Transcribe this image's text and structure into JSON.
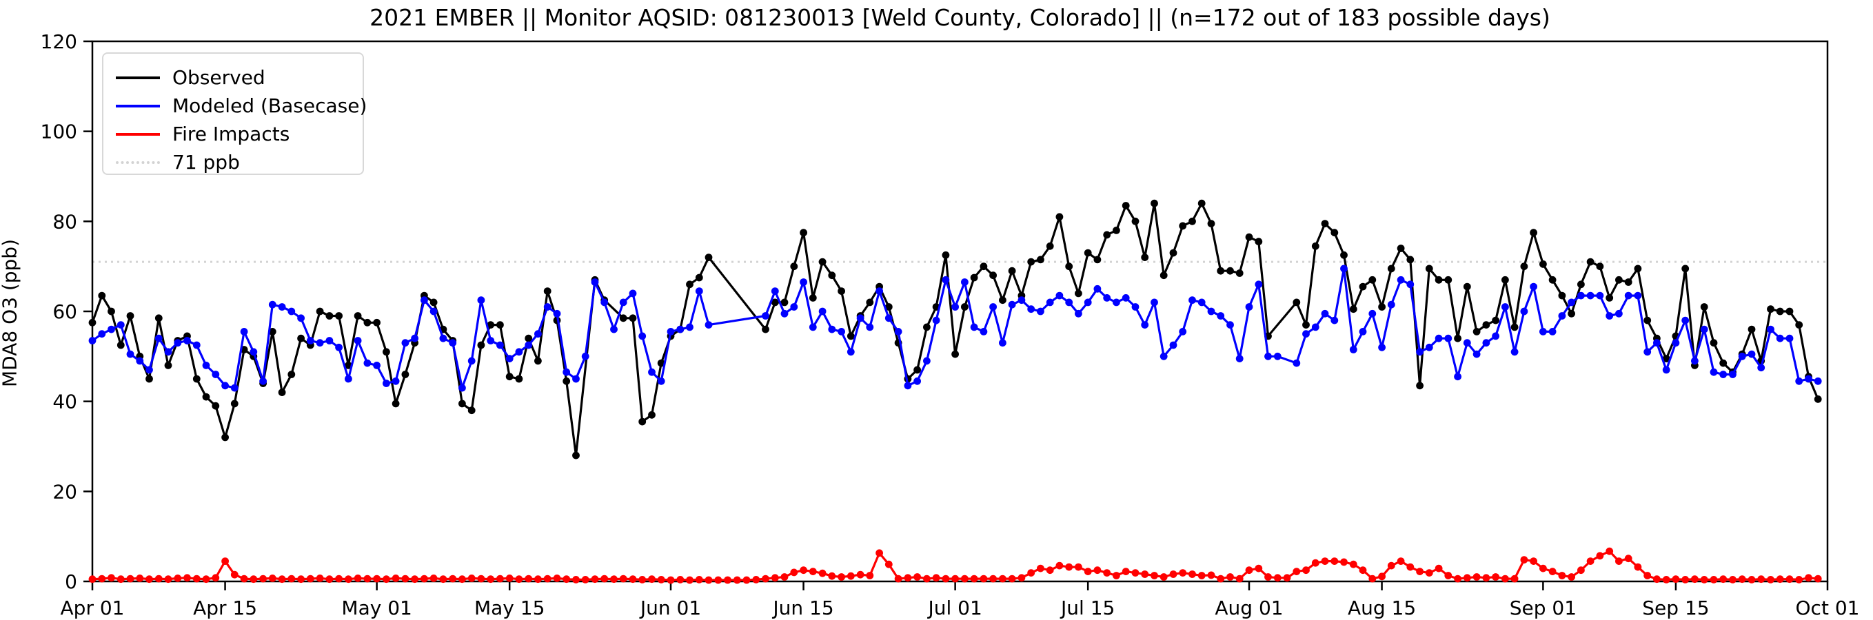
{
  "header": {
    "title": "2021 EMBER || Monitor AQSID: 081230013 [Weld County, Colorado] || (n=172 out of 183 possible days)"
  },
  "axes": {
    "ylabel": "MDA8 O3 (ppb)",
    "y_ticks": [
      0,
      20,
      40,
      60,
      80,
      100,
      120
    ],
    "ylim": [
      0,
      120
    ]
  },
  "legend": {
    "items": [
      {
        "label": "Observed",
        "color": "#000000",
        "style": "solid"
      },
      {
        "label": "Modeled (Basecase)",
        "color": "#0000ff",
        "style": "solid"
      },
      {
        "label": "Fire Impacts",
        "color": "#ff0000",
        "style": "solid"
      },
      {
        "label": "71 ppb",
        "color": "#d3d3d3",
        "style": "dotted"
      }
    ]
  },
  "chart_data": {
    "type": "line",
    "title": "2021 EMBER || Monitor AQSID: 081230013 [Weld County, Colorado] || (n=172 out of 183 possible days)",
    "xlabel": "",
    "ylabel": "MDA8 O3 (ppb)",
    "ylim": [
      0,
      120
    ],
    "y_ticks": [
      0,
      20,
      40,
      60,
      80,
      100,
      120
    ],
    "threshold_ppb": 71,
    "threshold_color": "#d3d3d3",
    "start_date": "2021-04-01",
    "days_total": 183,
    "x_tick_labels": [
      "Apr 01",
      "Apr 15",
      "May 01",
      "May 15",
      "Jun 01",
      "Jun 15",
      "Jul 01",
      "Jul 15",
      "Aug 01",
      "Aug 15",
      "Sep 01",
      "Sep 15",
      "Oct 01"
    ],
    "x_tick_day_offsets": [
      0,
      14,
      30,
      44,
      61,
      75,
      91,
      105,
      122,
      136,
      153,
      167,
      183
    ],
    "legend_position": "upper left",
    "grid": false,
    "series": [
      {
        "name": "Observed",
        "color": "#000000",
        "marker": "o",
        "values": [
          57.5,
          63.5,
          60,
          52.5,
          59,
          50,
          45,
          58.5,
          48,
          53.5,
          54.5,
          45,
          41,
          39,
          32,
          39.5,
          51.5,
          50,
          44,
          55.5,
          42,
          46,
          54,
          52.5,
          60,
          59,
          59,
          48,
          59,
          57.5,
          57.5,
          51,
          39.5,
          46,
          53,
          63.5,
          62,
          56,
          53.5,
          39.5,
          38,
          52.5,
          57,
          57,
          45.5,
          45,
          54,
          49,
          64.5,
          58,
          44.5,
          28,
          null,
          67,
          62.5,
          null,
          58.5,
          58.5,
          35.5,
          37,
          48.5,
          54.5,
          56,
          66,
          67.5,
          72,
          null,
          null,
          null,
          null,
          null,
          56,
          62,
          62,
          70,
          77.5,
          63,
          71,
          68,
          64.5,
          54.5,
          59,
          62,
          65.5,
          61,
          53,
          45,
          47,
          56.5,
          61,
          72.5,
          50.5,
          61,
          67.5,
          70,
          68,
          62.5,
          69,
          63.5,
          71,
          71.5,
          74.5,
          81,
          70,
          64,
          73,
          71.5,
          77,
          78,
          83.5,
          80,
          72,
          84,
          68,
          73,
          79,
          80,
          84,
          79.5,
          69,
          69,
          68.5,
          76.5,
          75.5,
          54.5,
          null,
          null,
          62,
          57,
          74.5,
          79.5,
          77.5,
          72.5,
          60.5,
          65.5,
          67,
          61,
          69.5,
          74,
          71.5,
          43.5,
          69.5,
          67,
          67,
          54,
          65.5,
          55.5,
          57,
          58,
          67,
          56.5,
          70,
          77.5,
          70.5,
          67,
          63.5,
          59.5,
          66,
          71,
          70,
          63,
          67,
          66.5,
          69.5,
          58,
          54,
          49.5,
          54.5,
          69.5,
          48,
          61,
          53,
          48.5,
          46.5,
          50.5,
          56,
          49,
          60.5,
          60,
          60,
          57,
          45.5,
          40.5
        ]
      },
      {
        "name": "Modeled (Basecase)",
        "color": "#0000ff",
        "marker": "o",
        "values": [
          53.5,
          55,
          56,
          57,
          50.5,
          49,
          47,
          54,
          51,
          53,
          53.5,
          52.5,
          48,
          46,
          43.5,
          43,
          55.5,
          51,
          44.5,
          61.5,
          61,
          60,
          58.5,
          53.5,
          53,
          53.5,
          52,
          45,
          53.5,
          48.5,
          48,
          44,
          44.5,
          53,
          54,
          62.5,
          60,
          54,
          53,
          43,
          49,
          62.5,
          53.5,
          52.5,
          49.5,
          51,
          52.5,
          55,
          61,
          59.5,
          46.5,
          45,
          50,
          66.5,
          62,
          56,
          62,
          64,
          54.5,
          46.5,
          44.5,
          55.5,
          56,
          56.5,
          64.5,
          57,
          null,
          null,
          null,
          null,
          null,
          59,
          64.5,
          59.5,
          61,
          66.5,
          56.5,
          60,
          56,
          55.5,
          51,
          58.5,
          56.5,
          64.5,
          58.5,
          55.5,
          43.5,
          44.5,
          49,
          58,
          67,
          61,
          66.5,
          56.5,
          55.5,
          61,
          53,
          61.5,
          62.5,
          60.5,
          60,
          62,
          63.5,
          62,
          59.5,
          62,
          65,
          63,
          62,
          63,
          61,
          57,
          62,
          50,
          52.5,
          55.5,
          62.5,
          62,
          60,
          59,
          57,
          49.5,
          61,
          66,
          50,
          50,
          null,
          48.5,
          55,
          56.5,
          59.5,
          58,
          69.5,
          51.5,
          55.5,
          59.5,
          52,
          61.5,
          67,
          66,
          51,
          52,
          54,
          54,
          45.5,
          53,
          50.5,
          53,
          54.5,
          61,
          51,
          60,
          65.5,
          55.5,
          55.5,
          59,
          62,
          63.5,
          63.5,
          63.5,
          59,
          59.5,
          63.5,
          63.5,
          51,
          53,
          47,
          53,
          58,
          49,
          56,
          46.5,
          46,
          46,
          50,
          50.5,
          47.5,
          56,
          54,
          54,
          44.5,
          45,
          44.5
        ]
      },
      {
        "name": "Fire Impacts",
        "color": "#ff0000",
        "marker": "o",
        "values": [
          0.5,
          0.6,
          0.8,
          0.5,
          0.6,
          0.7,
          0.5,
          0.6,
          0.5,
          0.7,
          0.8,
          0.6,
          0.5,
          0.8,
          4.5,
          1.5,
          0.6,
          0.5,
          0.6,
          0.7,
          0.5,
          0.6,
          0.5,
          0.6,
          0.7,
          0.5,
          0.6,
          0.5,
          0.7,
          0.6,
          0.6,
          0.5,
          0.7,
          0.6,
          0.5,
          0.6,
          0.7,
          0.5,
          0.6,
          0.5,
          0.7,
          0.6,
          0.5,
          0.6,
          0.7,
          0.5,
          0.6,
          0.5,
          0.6,
          0.7,
          0.5,
          0.4,
          0.4,
          0.5,
          0.6,
          0.5,
          0.6,
          0.5,
          0.4,
          0.5,
          0.4,
          0.3,
          0.4,
          0.3,
          0.4,
          0.3,
          0.3,
          0.3,
          0.3,
          0.3,
          0.4,
          0.6,
          0.8,
          1.0,
          2.0,
          2.5,
          2.2,
          1.8,
          1.2,
          1.0,
          1.2,
          1.5,
          1.3,
          6.3,
          3.8,
          0.6,
          0.8,
          1.0,
          0.6,
          0.8,
          0.6,
          0.6,
          0.6,
          0.6,
          0.6,
          0.6,
          0.6,
          0.6,
          0.8,
          1.9,
          2.9,
          2.5,
          3.5,
          3.2,
          3.2,
          2.2,
          2.5,
          1.9,
          1.3,
          2.2,
          1.9,
          1.6,
          1.3,
          1.0,
          1.6,
          1.9,
          1.6,
          1.3,
          1.4,
          0.6,
          1.0,
          0.6,
          2.5,
          2.9,
          1.0,
          0.8,
          0.8,
          2.2,
          2.5,
          4.1,
          4.5,
          4.5,
          4.3,
          3.8,
          2.5,
          0.6,
          1.1,
          3.5,
          4.5,
          3.2,
          2.2,
          1.9,
          2.9,
          1.3,
          0.6,
          0.8,
          1.0,
          0.8,
          1.0,
          0.6,
          0.6,
          4.8,
          4.5,
          2.9,
          2.2,
          1.3,
          1.0,
          2.5,
          4.5,
          5.7,
          6.7,
          4.5,
          5.1,
          3.2,
          1.3,
          0.5,
          0.4,
          0.5,
          0.4,
          0.5,
          0.4,
          0.4,
          0.5,
          0.4,
          0.5,
          0.4,
          0.5,
          0.4,
          0.5,
          0.5,
          0.4,
          0.8,
          0.6
        ]
      }
    ]
  }
}
